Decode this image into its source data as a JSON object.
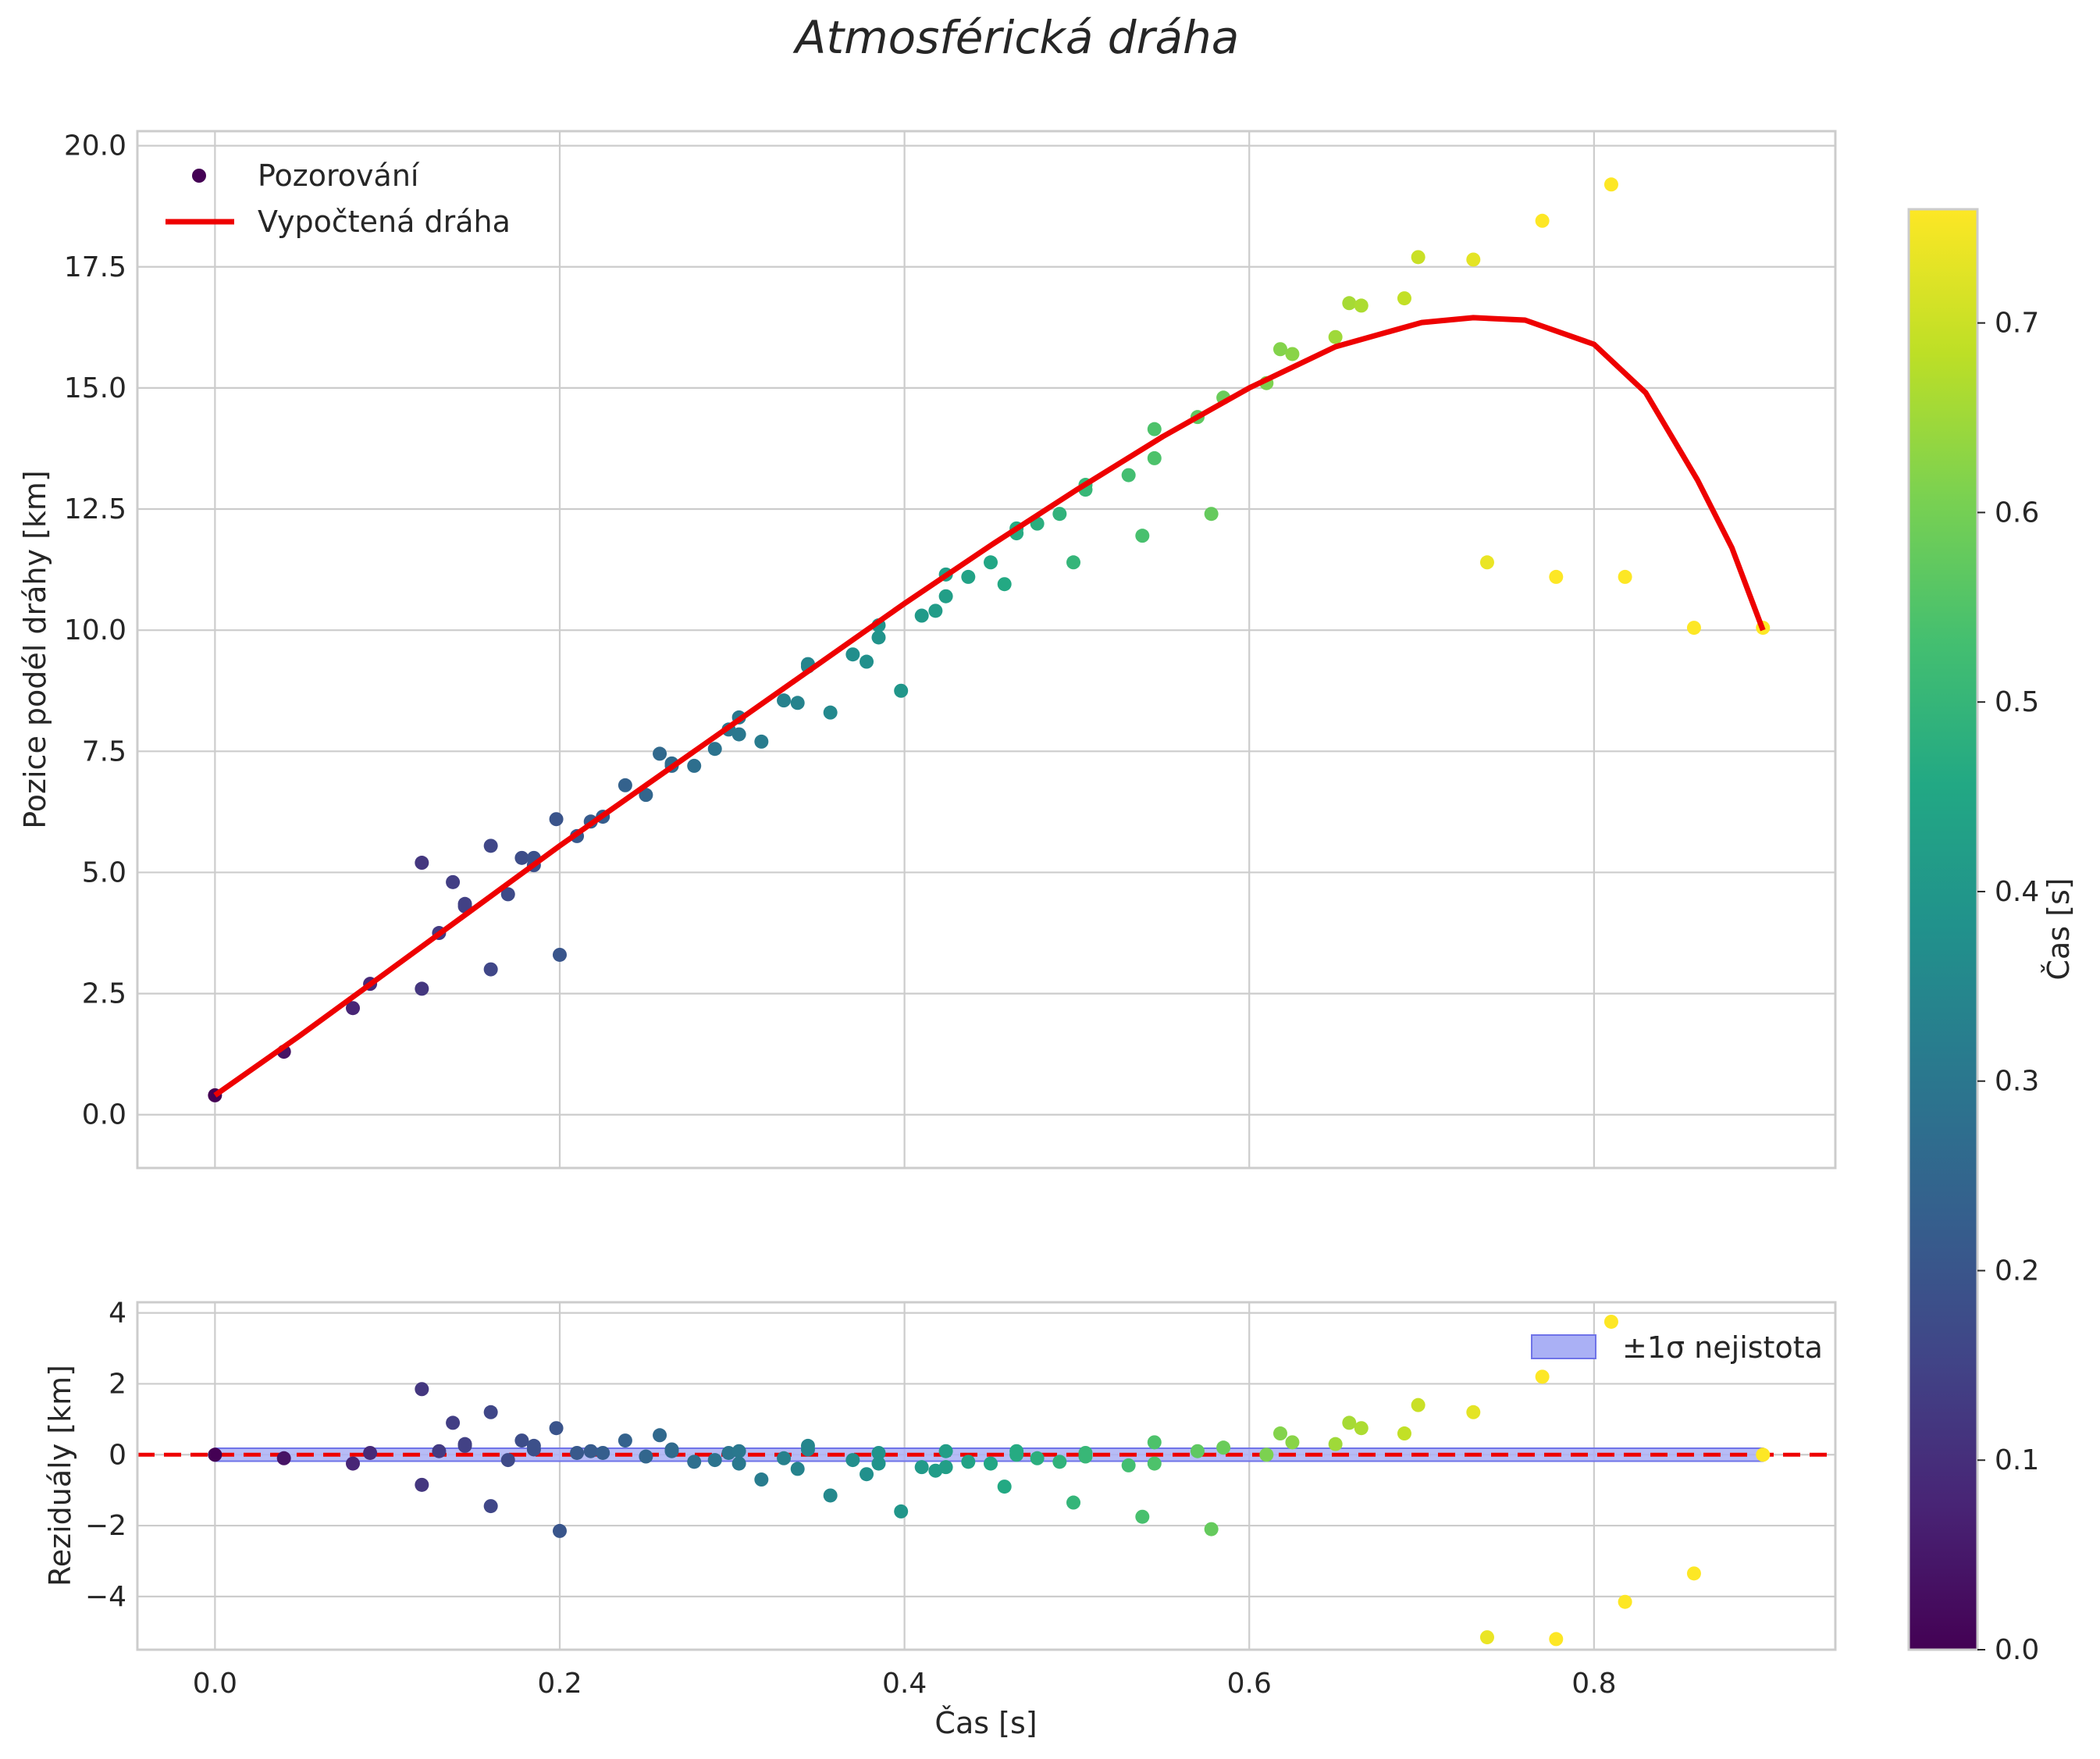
{
  "chart_data": [
    {
      "type": "scatter",
      "title": "Atmosférická dráha",
      "xlabel": "Čas [s]",
      "ylabel": "Pozice podél dráhy [km]",
      "xlim": [
        -0.045,
        0.94
      ],
      "ylim": [
        -1.1,
        20.3
      ],
      "xticks": [
        0.0,
        0.2,
        0.4,
        0.6,
        0.8
      ],
      "xtick_labels": [
        "0.0",
        "0.2",
        "0.4",
        "0.6",
        "0.8"
      ],
      "yticks": [
        0.0,
        2.5,
        5.0,
        7.5,
        10.0,
        12.5,
        15.0,
        17.5,
        20.0
      ],
      "ytick_labels": [
        "0.0",
        "2.5",
        "5.0",
        "7.5",
        "10.0",
        "12.5",
        "15.0",
        "17.5",
        "20.0"
      ],
      "legend": [
        "Pozorování",
        "Vypočtená dráha"
      ],
      "legend_position": "top-left",
      "series": [
        {
          "name": "Pozorování",
          "kind": "scatter",
          "color_by": "x",
          "points": [
            [
              0.0,
              0.4
            ],
            [
              0.04,
              1.3
            ],
            [
              0.08,
              2.2
            ],
            [
              0.09,
              2.7
            ],
            [
              0.12,
              5.2
            ],
            [
              0.12,
              2.6
            ],
            [
              0.13,
              3.75
            ],
            [
              0.138,
              4.8
            ],
            [
              0.145,
              4.35
            ],
            [
              0.145,
              4.3
            ],
            [
              0.16,
              5.55
            ],
            [
              0.16,
              3.0
            ],
            [
              0.17,
              4.55
            ],
            [
              0.178,
              5.3
            ],
            [
              0.185,
              5.15
            ],
            [
              0.185,
              5.3
            ],
            [
              0.198,
              6.1
            ],
            [
              0.2,
              3.3
            ],
            [
              0.21,
              5.75
            ],
            [
              0.218,
              6.05
            ],
            [
              0.225,
              6.15
            ],
            [
              0.238,
              6.8
            ],
            [
              0.25,
              6.6
            ],
            [
              0.258,
              7.45
            ],
            [
              0.265,
              7.25
            ],
            [
              0.265,
              7.2
            ],
            [
              0.278,
              7.2
            ],
            [
              0.29,
              7.55
            ],
            [
              0.298,
              7.95
            ],
            [
              0.304,
              7.85
            ],
            [
              0.304,
              8.2
            ],
            [
              0.317,
              7.7
            ],
            [
              0.33,
              8.55
            ],
            [
              0.338,
              8.5
            ],
            [
              0.344,
              9.3
            ],
            [
              0.344,
              9.25
            ],
            [
              0.357,
              8.3
            ],
            [
              0.37,
              9.5
            ],
            [
              0.378,
              9.35
            ],
            [
              0.385,
              10.1
            ],
            [
              0.385,
              9.85
            ],
            [
              0.398,
              8.75
            ],
            [
              0.41,
              10.3
            ],
            [
              0.418,
              10.4
            ],
            [
              0.424,
              11.15
            ],
            [
              0.424,
              10.7
            ],
            [
              0.437,
              11.1
            ],
            [
              0.45,
              11.4
            ],
            [
              0.458,
              10.95
            ],
            [
              0.465,
              12.0
            ],
            [
              0.465,
              12.1
            ],
            [
              0.477,
              12.2
            ],
            [
              0.49,
              12.4
            ],
            [
              0.498,
              11.4
            ],
            [
              0.505,
              13.0
            ],
            [
              0.505,
              12.9
            ],
            [
              0.53,
              13.2
            ],
            [
              0.538,
              11.95
            ],
            [
              0.545,
              14.15
            ],
            [
              0.545,
              13.55
            ],
            [
              0.57,
              14.4
            ],
            [
              0.578,
              12.4
            ],
            [
              0.585,
              14.8
            ],
            [
              0.61,
              15.1
            ],
            [
              0.618,
              15.8
            ],
            [
              0.625,
              15.7
            ],
            [
              0.65,
              16.05
            ],
            [
              0.658,
              16.75
            ],
            [
              0.665,
              16.7
            ],
            [
              0.69,
              16.85
            ],
            [
              0.698,
              17.7
            ],
            [
              0.73,
              17.65
            ],
            [
              0.738,
              11.4
            ],
            [
              0.77,
              18.45
            ],
            [
              0.778,
              11.1
            ],
            [
              0.81,
              19.2
            ],
            [
              0.818,
              11.1
            ],
            [
              0.858,
              10.05
            ],
            [
              0.898,
              10.05
            ]
          ]
        },
        {
          "name": "Vypočtená dráha",
          "kind": "line",
          "color": "#ee0000",
          "points": [
            [
              0.0,
              0.4
            ],
            [
              0.05,
              1.65
            ],
            [
              0.1,
              2.95
            ],
            [
              0.15,
              4.25
            ],
            [
              0.2,
              5.55
            ],
            [
              0.25,
              6.8
            ],
            [
              0.3,
              8.05
            ],
            [
              0.35,
              9.3
            ],
            [
              0.4,
              10.55
            ],
            [
              0.45,
              11.75
            ],
            [
              0.5,
              12.9
            ],
            [
              0.55,
              14.0
            ],
            [
              0.6,
              15.0
            ],
            [
              0.65,
              15.85
            ],
            [
              0.7,
              16.35
            ],
            [
              0.73,
              16.45
            ],
            [
              0.76,
              16.4
            ],
            [
              0.8,
              15.9
            ],
            [
              0.83,
              14.9
            ],
            [
              0.86,
              13.1
            ],
            [
              0.88,
              11.7
            ],
            [
              0.898,
              10.0
            ]
          ]
        }
      ]
    },
    {
      "type": "scatter",
      "title": "",
      "xlabel": "Čas [s]",
      "ylabel": "Reziduály [km]",
      "xlim": [
        -0.045,
        0.94
      ],
      "ylim": [
        -5.5,
        4.3
      ],
      "xticks": [
        0.0,
        0.2,
        0.4,
        0.6,
        0.8
      ],
      "xtick_labels": [
        "0.0",
        "0.2",
        "0.4",
        "0.6",
        "0.8"
      ],
      "yticks": [
        -4,
        -2,
        0,
        2,
        4
      ],
      "ytick_labels": [
        "−4",
        "−2",
        "0",
        "2",
        "4"
      ],
      "legend": [
        "±1σ nejistota"
      ],
      "legend_position": "top-right",
      "uncertainty_band": [
        -0.05,
        0.05
      ],
      "zero_line": 0,
      "series": [
        {
          "name": "Reziduály",
          "kind": "scatter",
          "color_by": "x",
          "points": [
            [
              0.0,
              0.0
            ],
            [
              0.04,
              -0.1
            ],
            [
              0.08,
              -0.25
            ],
            [
              0.09,
              0.05
            ],
            [
              0.12,
              1.85
            ],
            [
              0.12,
              -0.85
            ],
            [
              0.13,
              0.1
            ],
            [
              0.138,
              0.9
            ],
            [
              0.145,
              0.3
            ],
            [
              0.145,
              0.25
            ],
            [
              0.16,
              1.2
            ],
            [
              0.16,
              -1.45
            ],
            [
              0.17,
              -0.15
            ],
            [
              0.178,
              0.4
            ],
            [
              0.185,
              0.25
            ],
            [
              0.185,
              0.15
            ],
            [
              0.198,
              0.75
            ],
            [
              0.2,
              -2.15
            ],
            [
              0.21,
              0.05
            ],
            [
              0.218,
              0.1
            ],
            [
              0.225,
              0.05
            ],
            [
              0.238,
              0.4
            ],
            [
              0.25,
              -0.05
            ],
            [
              0.258,
              0.55
            ],
            [
              0.265,
              0.15
            ],
            [
              0.265,
              0.1
            ],
            [
              0.278,
              -0.2
            ],
            [
              0.29,
              -0.15
            ],
            [
              0.298,
              0.05
            ],
            [
              0.304,
              -0.25
            ],
            [
              0.304,
              0.1
            ],
            [
              0.317,
              -0.7
            ],
            [
              0.33,
              -0.1
            ],
            [
              0.338,
              -0.4
            ],
            [
              0.344,
              0.25
            ],
            [
              0.344,
              0.15
            ],
            [
              0.357,
              -1.15
            ],
            [
              0.37,
              -0.15
            ],
            [
              0.378,
              -0.55
            ],
            [
              0.385,
              0.05
            ],
            [
              0.385,
              -0.25
            ],
            [
              0.398,
              -1.6
            ],
            [
              0.41,
              -0.35
            ],
            [
              0.418,
              -0.45
            ],
            [
              0.424,
              0.1
            ],
            [
              0.424,
              -0.35
            ],
            [
              0.437,
              -0.2
            ],
            [
              0.45,
              -0.25
            ],
            [
              0.458,
              -0.9
            ],
            [
              0.465,
              0.1
            ],
            [
              0.465,
              0.0
            ],
            [
              0.477,
              -0.1
            ],
            [
              0.49,
              -0.2
            ],
            [
              0.498,
              -1.35
            ],
            [
              0.505,
              0.05
            ],
            [
              0.505,
              -0.05
            ],
            [
              0.53,
              -0.3
            ],
            [
              0.538,
              -1.75
            ],
            [
              0.545,
              0.35
            ],
            [
              0.545,
              -0.25
            ],
            [
              0.57,
              0.1
            ],
            [
              0.578,
              -2.1
            ],
            [
              0.585,
              0.2
            ],
            [
              0.61,
              0.0
            ],
            [
              0.618,
              0.6
            ],
            [
              0.625,
              0.35
            ],
            [
              0.65,
              0.3
            ],
            [
              0.658,
              0.9
            ],
            [
              0.665,
              0.75
            ],
            [
              0.69,
              0.6
            ],
            [
              0.698,
              1.4
            ],
            [
              0.73,
              1.2
            ],
            [
              0.738,
              -5.15
            ],
            [
              0.77,
              2.2
            ],
            [
              0.778,
              -5.2
            ],
            [
              0.81,
              3.75
            ],
            [
              0.818,
              -4.15
            ],
            [
              0.858,
              -3.35
            ],
            [
              0.898,
              0.0
            ]
          ]
        }
      ]
    },
    {
      "type": "colorbar",
      "label": "Čas [s]",
      "colormap": "viridis",
      "range": [
        0.0,
        0.76
      ],
      "ticks": [
        0.0,
        0.1,
        0.2,
        0.3,
        0.4,
        0.5,
        0.6,
        0.7
      ],
      "tick_labels": [
        "0.0",
        "0.1",
        "0.2",
        "0.3",
        "0.4",
        "0.5",
        "0.6",
        "0.7"
      ]
    }
  ],
  "colors": {
    "fit_line": "#ee0000",
    "zero_line": "#ee0000",
    "band_fill": "#aab0f5",
    "band_edge": "#6f73e8",
    "grid": "#cccccc",
    "text": "#262626"
  }
}
